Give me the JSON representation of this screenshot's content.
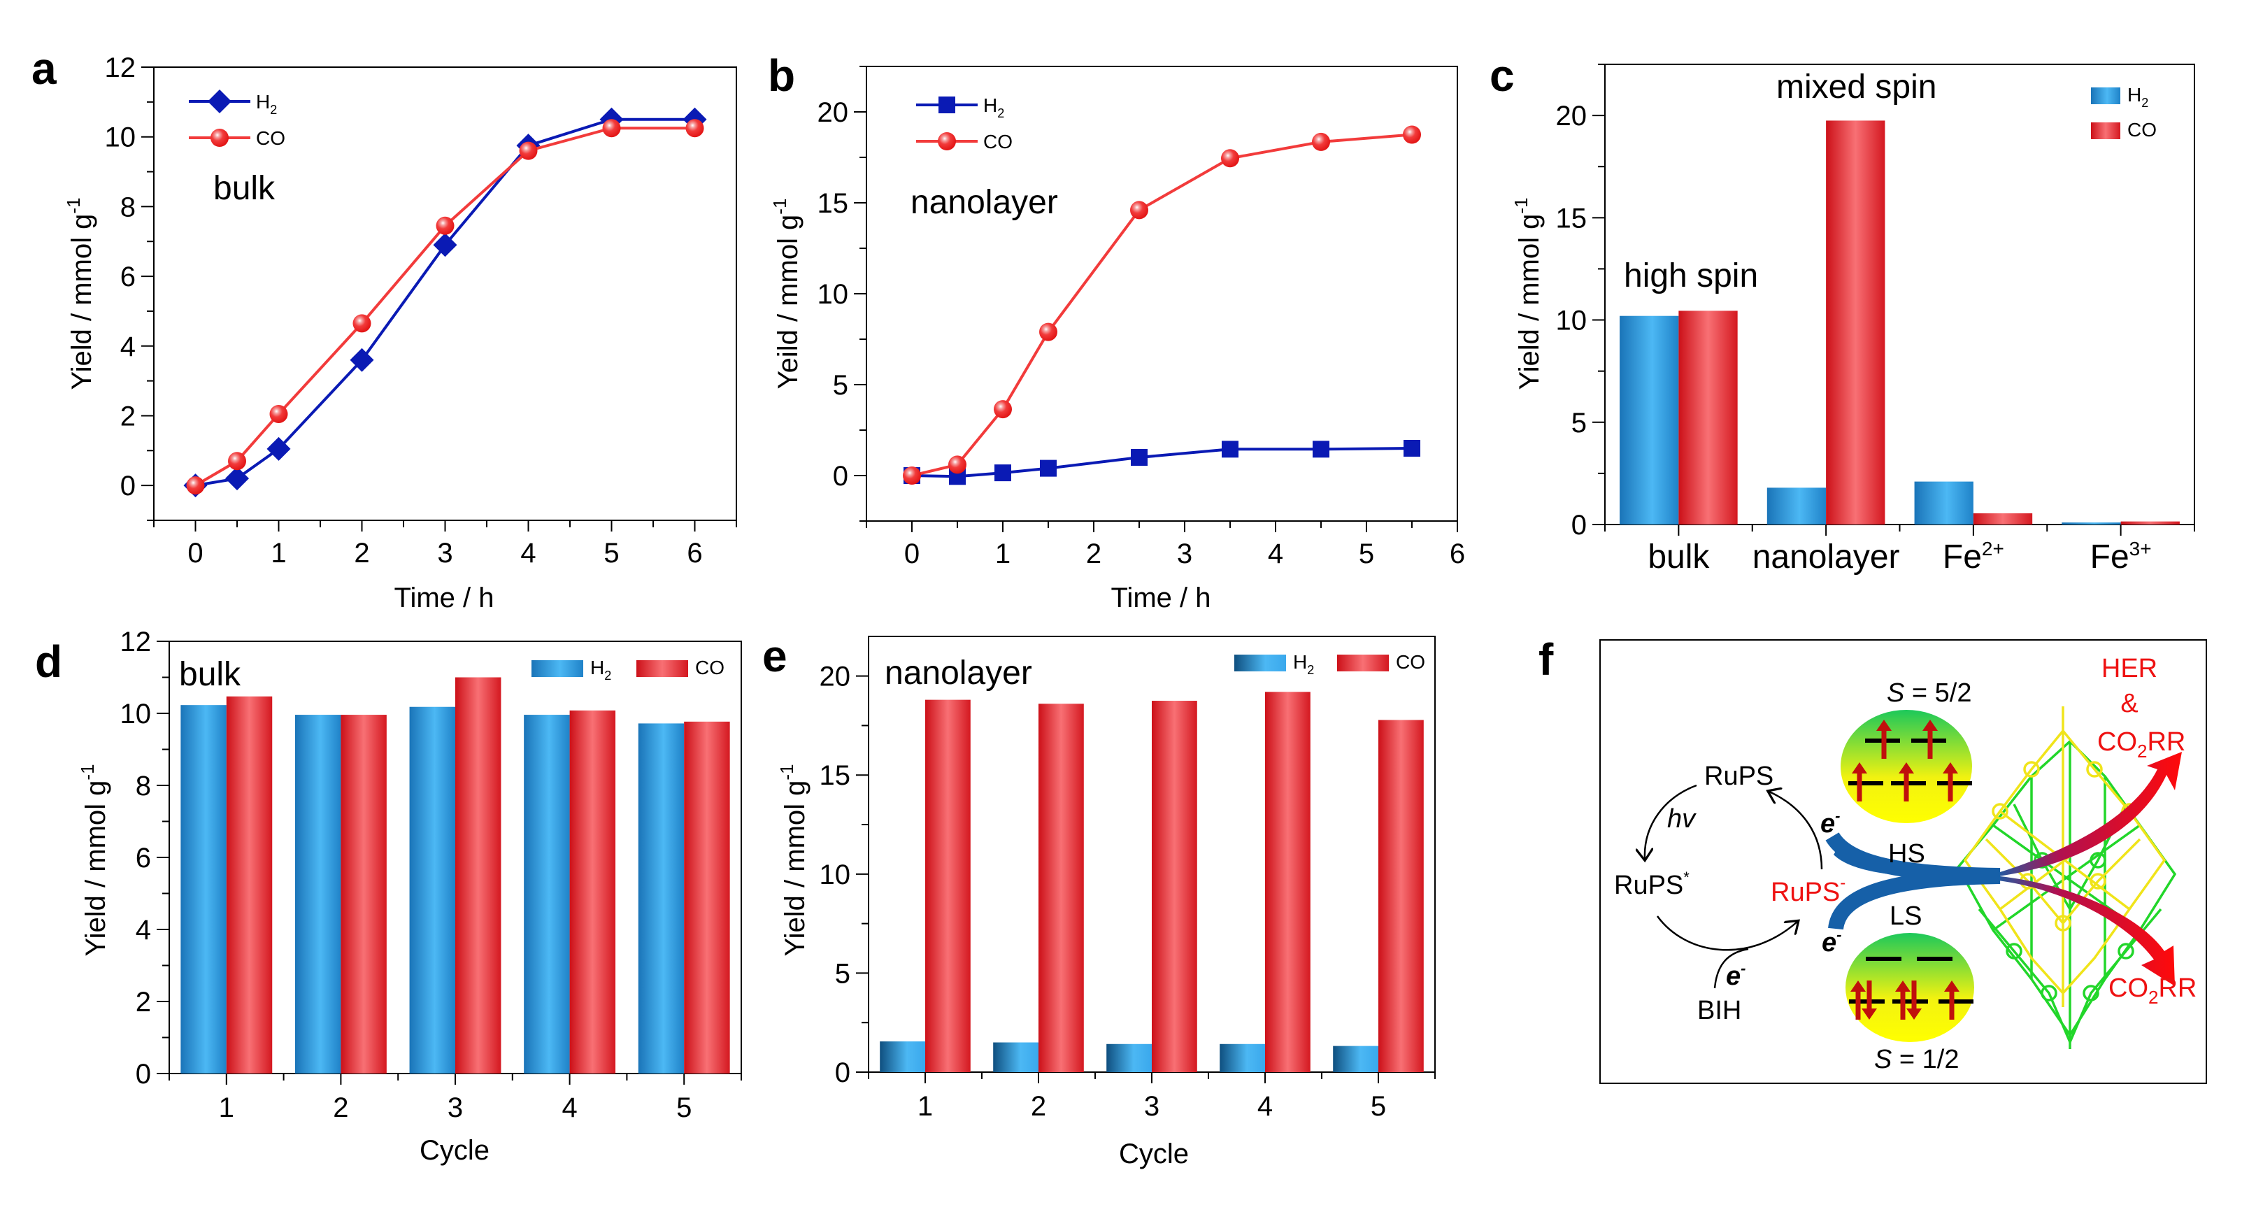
{
  "colors": {
    "h2_line": "#0a1ab4",
    "co_line": "#f23b3b",
    "h2_bar": "#3aa8ec",
    "h2_bar_dark": "#1a74b8",
    "co_bar": "#f0585c",
    "co_bar_dark": "#cc1018",
    "diagram_red": "#ee1111",
    "diagram_blue": "#1660a8",
    "arrow_darkred": "#c0100c",
    "mof_yellow": "#f0e41a",
    "mof_green": "#22d62a"
  },
  "chart_data": [
    {
      "id": "a",
      "panel_letter": "a",
      "type": "line",
      "title": "",
      "annotation": "bulk",
      "xlabel": "Time / h",
      "ylabel": "Yield / mmol g",
      "ylabel_sup": "-1",
      "xlim": [
        -0.5,
        6.5
      ],
      "ylim": [
        -1,
        12
      ],
      "xticks": [
        0,
        1,
        2,
        3,
        4,
        5,
        6
      ],
      "yticks": [
        0,
        2,
        4,
        6,
        8,
        10,
        12
      ],
      "grid": false,
      "legend_position": "top-left",
      "series": [
        {
          "name": "H2",
          "label_main": "H",
          "label_sub": "2",
          "marker": "diamond",
          "x": [
            0,
            0.5,
            1,
            2,
            3,
            4,
            5,
            6
          ],
          "y": [
            0,
            0.2,
            1.05,
            3.6,
            6.9,
            9.75,
            10.5,
            10.5
          ]
        },
        {
          "name": "CO",
          "label_main": "CO",
          "label_sub": "",
          "marker": "circle",
          "x": [
            0,
            0.5,
            1,
            2,
            3,
            4,
            5,
            6
          ],
          "y": [
            0,
            0.7,
            2.05,
            4.65,
            7.45,
            9.6,
            10.25,
            10.25
          ]
        }
      ]
    },
    {
      "id": "b",
      "panel_letter": "b",
      "type": "line",
      "title": "",
      "annotation": "nanolayer",
      "xlabel": "Time / h",
      "ylabel": "Yeild / mmol g",
      "ylabel_sup": "-1",
      "xlim": [
        -0.5,
        6
      ],
      "ylim": [
        -2.5,
        22.5
      ],
      "xticks": [
        0,
        1,
        2,
        3,
        4,
        5,
        6
      ],
      "yticks": [
        0,
        5,
        10,
        15,
        20
      ],
      "grid": false,
      "legend_position": "top-left",
      "series": [
        {
          "name": "H2",
          "label_main": "H",
          "label_sub": "2",
          "marker": "square",
          "x": [
            0,
            0.5,
            1,
            1.5,
            2.5,
            3.5,
            4.5,
            5.5
          ],
          "y": [
            0,
            -0.05,
            0.15,
            0.4,
            1.0,
            1.45,
            1.45,
            1.5
          ]
        },
        {
          "name": "CO",
          "label_main": "CO",
          "label_sub": "",
          "marker": "circle",
          "x": [
            0,
            0.5,
            1,
            1.5,
            2.5,
            3.5,
            4.5,
            5.5
          ],
          "y": [
            0,
            0.6,
            3.65,
            7.9,
            14.6,
            17.45,
            18.35,
            18.75
          ]
        }
      ]
    },
    {
      "id": "c",
      "panel_letter": "c",
      "type": "bar",
      "title": "",
      "annotations": [
        "high spin",
        "mixed spin"
      ],
      "xlabel": "",
      "ylabel": "Yield / mmol g",
      "ylabel_sup": "-1",
      "ylim": [
        0,
        22.5
      ],
      "yticks": [
        0,
        5,
        10,
        15,
        20
      ],
      "grid": false,
      "legend_position": "top-right",
      "categories": [
        {
          "main": "bulk",
          "sup": ""
        },
        {
          "main": "nanolayer",
          "sup": ""
        },
        {
          "main": "Fe",
          "sup": "2+"
        },
        {
          "main": "Fe",
          "sup": "3+"
        }
      ],
      "series": [
        {
          "name": "H2",
          "label_main": "H",
          "label_sub": "2",
          "values": [
            10.2,
            1.8,
            2.1,
            0.1
          ]
        },
        {
          "name": "CO",
          "label_main": "CO",
          "label_sub": "",
          "values": [
            10.45,
            19.75,
            0.55,
            0.15
          ]
        }
      ]
    },
    {
      "id": "d",
      "panel_letter": "d",
      "type": "bar",
      "title": "",
      "annotation": "bulk",
      "xlabel": "Cycle",
      "ylabel": "Yield / mmol g",
      "ylabel_sup": "-1",
      "ylim": [
        0,
        12
      ],
      "yticks": [
        0,
        2,
        4,
        6,
        8,
        10,
        12
      ],
      "grid": false,
      "legend_position": "top-right",
      "categories": [
        "1",
        "2",
        "3",
        "4",
        "5"
      ],
      "series": [
        {
          "name": "H2",
          "label_main": "H",
          "label_sub": "2",
          "values": [
            10.23,
            9.96,
            10.18,
            9.96,
            9.72
          ]
        },
        {
          "name": "CO",
          "label_main": "CO",
          "label_sub": "",
          "values": [
            10.47,
            9.96,
            11.0,
            10.08,
            9.77
          ]
        }
      ]
    },
    {
      "id": "e",
      "panel_letter": "e",
      "type": "bar",
      "title": "",
      "annotation": "nanolayer",
      "xlabel": "Cycle",
      "ylabel": "Yield / mmol g",
      "ylabel_sup": "-1",
      "ylim": [
        0,
        22
      ],
      "yticks": [
        0,
        5,
        10,
        15,
        20
      ],
      "grid": false,
      "legend_position": "top-right",
      "categories": [
        "1",
        "2",
        "3",
        "4",
        "5"
      ],
      "series": [
        {
          "name": "H2",
          "label_main": "H",
          "label_sub": "2",
          "values": [
            1.55,
            1.5,
            1.42,
            1.42,
            1.32
          ]
        },
        {
          "name": "CO",
          "label_main": "CO",
          "label_sub": "",
          "values": [
            18.8,
            18.6,
            18.75,
            19.2,
            17.78
          ]
        }
      ]
    }
  ],
  "diagram_f": {
    "panel_letter": "f",
    "cycle": {
      "rups": "RuPS",
      "rups_star": "RuPS",
      "rups_star_sup": "*",
      "rups_minus": "RuPS",
      "rups_minus_sup": "-",
      "hv": "hv",
      "bih": "BIH",
      "electron": "e",
      "electron_sup": "-"
    },
    "branches": {
      "upper": "HS",
      "lower": "LS"
    },
    "high_spin": {
      "label_s": "S",
      "label_rest": " = 5/2",
      "upper_level_electrons": [
        "up",
        "up"
      ],
      "lower_level_electrons": [
        "up",
        "up",
        "up"
      ]
    },
    "low_spin": {
      "label_s": "S",
      "label_rest": " = 1/2",
      "upper_level_electrons": [],
      "lower_level_electrons": [
        "updown",
        "updown",
        "up"
      ]
    },
    "products": {
      "top_line1": "HER",
      "top_line2": "&",
      "top_line3_main": "CO",
      "top_line3_sub": "2",
      "top_line3_tail": "RR",
      "bottom_main": "CO",
      "bottom_sub": "2",
      "bottom_tail": "RR"
    }
  }
}
